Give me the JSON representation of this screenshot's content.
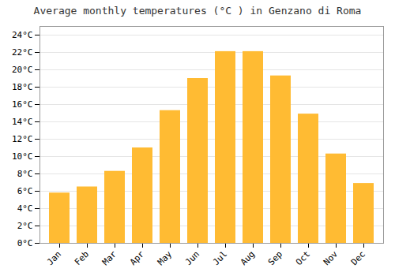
{
  "chart_data": {
    "type": "bar",
    "title": "Average monthly temperatures (°C ) in Genzano di Roma",
    "categories": [
      "Jan",
      "Feb",
      "Mar",
      "Apr",
      "May",
      "Jun",
      "Jul",
      "Aug",
      "Sep",
      "Oct",
      "Nov",
      "Dec"
    ],
    "values": [
      5.8,
      6.5,
      8.3,
      11.0,
      15.3,
      19.0,
      22.1,
      22.1,
      19.3,
      14.9,
      10.3,
      6.9
    ],
    "color": "#FFBB33",
    "ylim": [
      0,
      25
    ],
    "yticks": [
      {
        "value": 0,
        "label": "0°C"
      },
      {
        "value": 2,
        "label": "2°C"
      },
      {
        "value": 4,
        "label": "4°C"
      },
      {
        "value": 6,
        "label": "6°C"
      },
      {
        "value": 8,
        "label": "8°C"
      },
      {
        "value": 10,
        "label": "10°C"
      },
      {
        "value": 12,
        "label": "12°C"
      },
      {
        "value": 14,
        "label": "14°C"
      },
      {
        "value": 16,
        "label": "16°C"
      },
      {
        "value": 18,
        "label": "18°C"
      },
      {
        "value": 20,
        "label": "20°C"
      },
      {
        "value": 22,
        "label": "22°C"
      },
      {
        "value": 24,
        "label": "24°C"
      }
    ],
    "grid": true
  }
}
